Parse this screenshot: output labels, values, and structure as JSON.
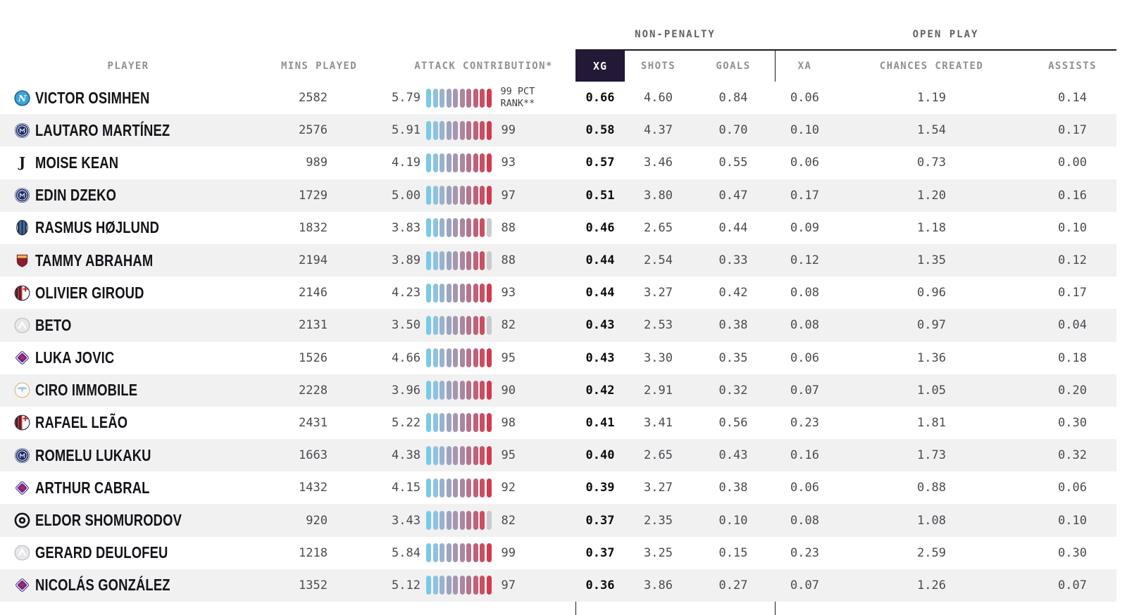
{
  "chart_data": {
    "type": "table",
    "groups": {
      "non_penalty": "NON-PENALTY",
      "open_play": "OPEN PLAY"
    },
    "columns": {
      "player": "PLAYER",
      "mins": "MINS PLAYED",
      "attack": "ATTACK CONTRIBUTION*",
      "xg": "XG",
      "shots": "SHOTS",
      "goals": "GOALS",
      "xa": "XA",
      "chances": "CHANCES CREATED",
      "assists": "ASSISTS"
    },
    "highlighted_column": "XG",
    "pct_rank_note": [
      "99 PCT",
      "RANK**"
    ],
    "rows": [
      {
        "player": "VICTOR OSIMHEN",
        "club": "napoli",
        "mins_played": "2582",
        "attack_contribution": "5.79",
        "pct_rank": 99,
        "non_penalty": {
          "xg": "0.66",
          "shots": "4.60",
          "goals": "0.84"
        },
        "open_play": {
          "xa": "0.06",
          "chances_created": "1.19",
          "assists": "0.14"
        }
      },
      {
        "player": "LAUTARO MARTÍNEZ",
        "club": "inter",
        "mins_played": "2576",
        "attack_contribution": "5.91",
        "pct_rank": 99,
        "non_penalty": {
          "xg": "0.58",
          "shots": "4.37",
          "goals": "0.70"
        },
        "open_play": {
          "xa": "0.10",
          "chances_created": "1.54",
          "assists": "0.17"
        }
      },
      {
        "player": "MOISE KEAN",
        "club": "juventus",
        "mins_played": "989",
        "attack_contribution": "4.19",
        "pct_rank": 93,
        "non_penalty": {
          "xg": "0.57",
          "shots": "3.46",
          "goals": "0.55"
        },
        "open_play": {
          "xa": "0.06",
          "chances_created": "0.73",
          "assists": "0.00"
        }
      },
      {
        "player": "EDIN DZEKO",
        "club": "inter",
        "mins_played": "1729",
        "attack_contribution": "5.00",
        "pct_rank": 97,
        "non_penalty": {
          "xg": "0.51",
          "shots": "3.80",
          "goals": "0.47"
        },
        "open_play": {
          "xa": "0.17",
          "chances_created": "1.20",
          "assists": "0.16"
        }
      },
      {
        "player": "RASMUS HØJLUND",
        "club": "atalanta",
        "mins_played": "1832",
        "attack_contribution": "3.83",
        "pct_rank": 88,
        "non_penalty": {
          "xg": "0.46",
          "shots": "2.65",
          "goals": "0.44"
        },
        "open_play": {
          "xa": "0.09",
          "chances_created": "1.18",
          "assists": "0.10"
        }
      },
      {
        "player": "TAMMY ABRAHAM",
        "club": "roma",
        "mins_played": "2194",
        "attack_contribution": "3.89",
        "pct_rank": 88,
        "non_penalty": {
          "xg": "0.44",
          "shots": "2.54",
          "goals": "0.33"
        },
        "open_play": {
          "xa": "0.12",
          "chances_created": "1.35",
          "assists": "0.12"
        }
      },
      {
        "player": "OLIVIER GIROUD",
        "club": "milan",
        "mins_played": "2146",
        "attack_contribution": "4.23",
        "pct_rank": 93,
        "non_penalty": {
          "xg": "0.44",
          "shots": "3.27",
          "goals": "0.42"
        },
        "open_play": {
          "xa": "0.08",
          "chances_created": "0.96",
          "assists": "0.17"
        }
      },
      {
        "player": "BETO",
        "club": "udinese",
        "mins_played": "2131",
        "attack_contribution": "3.50",
        "pct_rank": 82,
        "non_penalty": {
          "xg": "0.43",
          "shots": "2.53",
          "goals": "0.38"
        },
        "open_play": {
          "xa": "0.08",
          "chances_created": "0.97",
          "assists": "0.04"
        }
      },
      {
        "player": "LUKA JOVIC",
        "club": "fiorentina",
        "mins_played": "1526",
        "attack_contribution": "4.66",
        "pct_rank": 95,
        "non_penalty": {
          "xg": "0.43",
          "shots": "3.30",
          "goals": "0.35"
        },
        "open_play": {
          "xa": "0.06",
          "chances_created": "1.36",
          "assists": "0.18"
        }
      },
      {
        "player": "CIRO IMMOBILE",
        "club": "lazio",
        "mins_played": "2228",
        "attack_contribution": "3.96",
        "pct_rank": 90,
        "non_penalty": {
          "xg": "0.42",
          "shots": "2.91",
          "goals": "0.32"
        },
        "open_play": {
          "xa": "0.07",
          "chances_created": "1.05",
          "assists": "0.20"
        }
      },
      {
        "player": "RAFAEL LEÃO",
        "club": "milan",
        "mins_played": "2431",
        "attack_contribution": "5.22",
        "pct_rank": 98,
        "non_penalty": {
          "xg": "0.41",
          "shots": "3.41",
          "goals": "0.56"
        },
        "open_play": {
          "xa": "0.23",
          "chances_created": "1.81",
          "assists": "0.30"
        }
      },
      {
        "player": "ROMELU LUKAKU",
        "club": "inter",
        "mins_played": "1663",
        "attack_contribution": "4.38",
        "pct_rank": 95,
        "non_penalty": {
          "xg": "0.40",
          "shots": "2.65",
          "goals": "0.43"
        },
        "open_play": {
          "xa": "0.16",
          "chances_created": "1.73",
          "assists": "0.32"
        }
      },
      {
        "player": "ARTHUR CABRAL",
        "club": "fiorentina",
        "mins_played": "1432",
        "attack_contribution": "4.15",
        "pct_rank": 92,
        "non_penalty": {
          "xg": "0.39",
          "shots": "3.27",
          "goals": "0.38"
        },
        "open_play": {
          "xa": "0.06",
          "chances_created": "0.88",
          "assists": "0.06"
        }
      },
      {
        "player": "ELDOR SHOMURODOV",
        "club": "spezia",
        "mins_played": "920",
        "attack_contribution": "3.43",
        "pct_rank": 82,
        "non_penalty": {
          "xg": "0.37",
          "shots": "2.35",
          "goals": "0.10"
        },
        "open_play": {
          "xa": "0.08",
          "chances_created": "1.08",
          "assists": "0.10"
        }
      },
      {
        "player": "GERARD DEULOFEU",
        "club": "udinese",
        "mins_played": "1218",
        "attack_contribution": "5.84",
        "pct_rank": 99,
        "non_penalty": {
          "xg": "0.37",
          "shots": "3.25",
          "goals": "0.15"
        },
        "open_play": {
          "xa": "0.23",
          "chances_created": "2.59",
          "assists": "0.30"
        }
      },
      {
        "player": "NICOLÁS GONZÁLEZ",
        "club": "fiorentina",
        "mins_played": "1352",
        "attack_contribution": "5.12",
        "pct_rank": 97,
        "non_penalty": {
          "xg": "0.36",
          "shots": "3.86",
          "goals": "0.27"
        },
        "open_play": {
          "xa": "0.07",
          "chances_created": "1.26",
          "assists": "0.07"
        }
      }
    ]
  },
  "colors": {
    "accent_header_bg": "#241837",
    "accent_header_text": "#ffffff",
    "row_stripe": "#f1f1f2",
    "grid_line": "#1b1b1f",
    "header_text": "#909094",
    "group_text": "#606166",
    "value_text": "#4a4b50",
    "player_text": "#131418",
    "bar_scale": [
      "#79c9e7",
      "#8fc2de",
      "#98b2cd",
      "#9da4bd",
      "#a496ae",
      "#aa879e",
      "#b3758d",
      "#bd6279",
      "#c84f64",
      "#d23b50"
    ],
    "bar_inactive": "#cbcbcd"
  }
}
